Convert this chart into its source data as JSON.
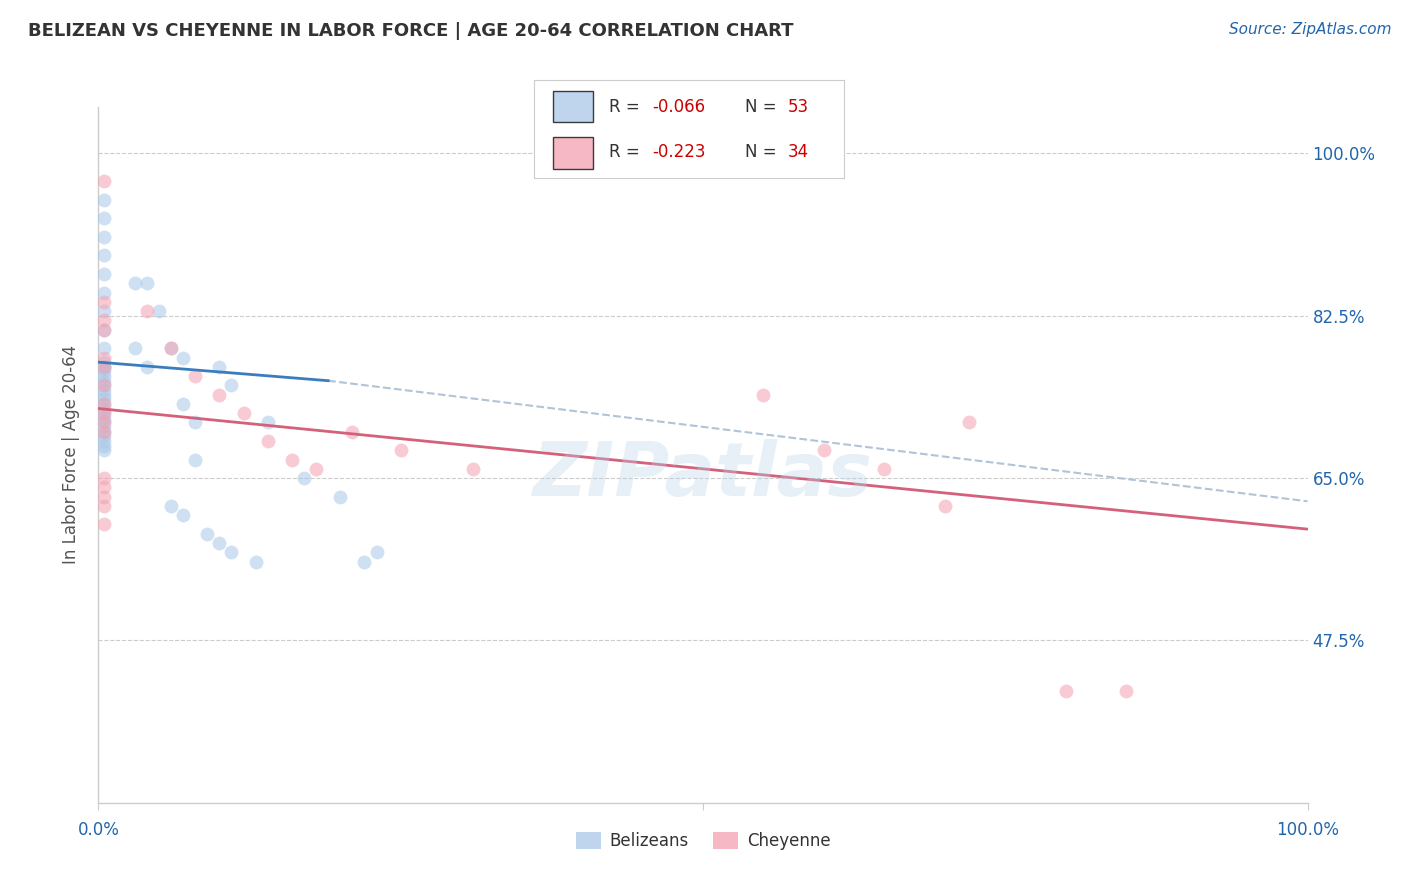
{
  "title": "BELIZEAN VS CHEYENNE IN LABOR FORCE | AGE 20-64 CORRELATION CHART",
  "source_text": "Source: ZipAtlas.com",
  "ylabel": "In Labor Force | Age 20-64",
  "xlim": [
    0.0,
    1.0
  ],
  "ylim": [
    0.3,
    1.05
  ],
  "ytick_right_labels": [
    "100.0%",
    "82.5%",
    "65.0%",
    "47.5%"
  ],
  "ytick_right_values": [
    1.0,
    0.825,
    0.65,
    0.475
  ],
  "blue_color": "#a8c8e8",
  "pink_color": "#f4a0b0",
  "trend_blue": "#3a7dbf",
  "trend_pink": "#d4607a",
  "trend_dashed_color": "#b0c4d8",
  "watermark": "ZIPatlas",
  "blue_scatter_x": [
    0.005,
    0.005,
    0.005,
    0.005,
    0.005,
    0.005,
    0.005,
    0.005,
    0.005,
    0.005,
    0.005,
    0.005,
    0.005,
    0.005,
    0.005,
    0.005,
    0.005,
    0.005,
    0.005,
    0.005,
    0.005,
    0.005,
    0.005,
    0.005,
    0.005,
    0.005,
    0.005,
    0.005,
    0.005,
    0.005,
    0.03,
    0.04,
    0.05,
    0.06,
    0.07,
    0.03,
    0.04,
    0.07,
    0.08,
    0.1,
    0.11,
    0.14,
    0.17,
    0.2,
    0.22,
    0.23,
    0.08,
    0.06,
    0.07,
    0.09,
    0.1,
    0.11,
    0.13
  ],
  "blue_scatter_y": [
    0.95,
    0.93,
    0.91,
    0.89,
    0.87,
    0.85,
    0.83,
    0.81,
    0.79,
    0.77,
    0.775,
    0.77,
    0.765,
    0.76,
    0.755,
    0.75,
    0.745,
    0.74,
    0.735,
    0.73,
    0.725,
    0.72,
    0.715,
    0.71,
    0.705,
    0.7,
    0.695,
    0.69,
    0.685,
    0.68,
    0.86,
    0.86,
    0.83,
    0.79,
    0.78,
    0.79,
    0.77,
    0.73,
    0.71,
    0.77,
    0.75,
    0.71,
    0.65,
    0.63,
    0.56,
    0.57,
    0.67,
    0.62,
    0.61,
    0.59,
    0.58,
    0.57,
    0.56
  ],
  "pink_scatter_x": [
    0.005,
    0.005,
    0.005,
    0.005,
    0.005,
    0.005,
    0.005,
    0.04,
    0.06,
    0.08,
    0.1,
    0.12,
    0.14,
    0.16,
    0.18,
    0.21,
    0.25,
    0.31,
    0.005,
    0.005,
    0.005,
    0.005,
    0.005,
    0.005,
    0.005,
    0.005,
    0.005,
    0.55,
    0.6,
    0.65,
    0.7,
    0.72,
    0.8,
    0.85
  ],
  "pink_scatter_y": [
    0.97,
    0.84,
    0.82,
    0.81,
    0.78,
    0.77,
    0.75,
    0.83,
    0.79,
    0.76,
    0.74,
    0.72,
    0.69,
    0.67,
    0.66,
    0.7,
    0.68,
    0.66,
    0.73,
    0.72,
    0.71,
    0.7,
    0.65,
    0.64,
    0.63,
    0.62,
    0.6,
    0.74,
    0.68,
    0.66,
    0.62,
    0.71,
    0.42,
    0.42
  ],
  "blue_trend_x": [
    0.0,
    0.19
  ],
  "blue_trend_y": [
    0.775,
    0.755
  ],
  "pink_trend_x": [
    0.0,
    1.0
  ],
  "pink_trend_y": [
    0.725,
    0.595
  ],
  "dashed_trend_x": [
    0.19,
    1.0
  ],
  "dashed_trend_y": [
    0.755,
    0.625
  ],
  "marker_size": 100,
  "marker_alpha": 0.55,
  "figsize": [
    14.06,
    8.92
  ],
  "dpi": 100
}
